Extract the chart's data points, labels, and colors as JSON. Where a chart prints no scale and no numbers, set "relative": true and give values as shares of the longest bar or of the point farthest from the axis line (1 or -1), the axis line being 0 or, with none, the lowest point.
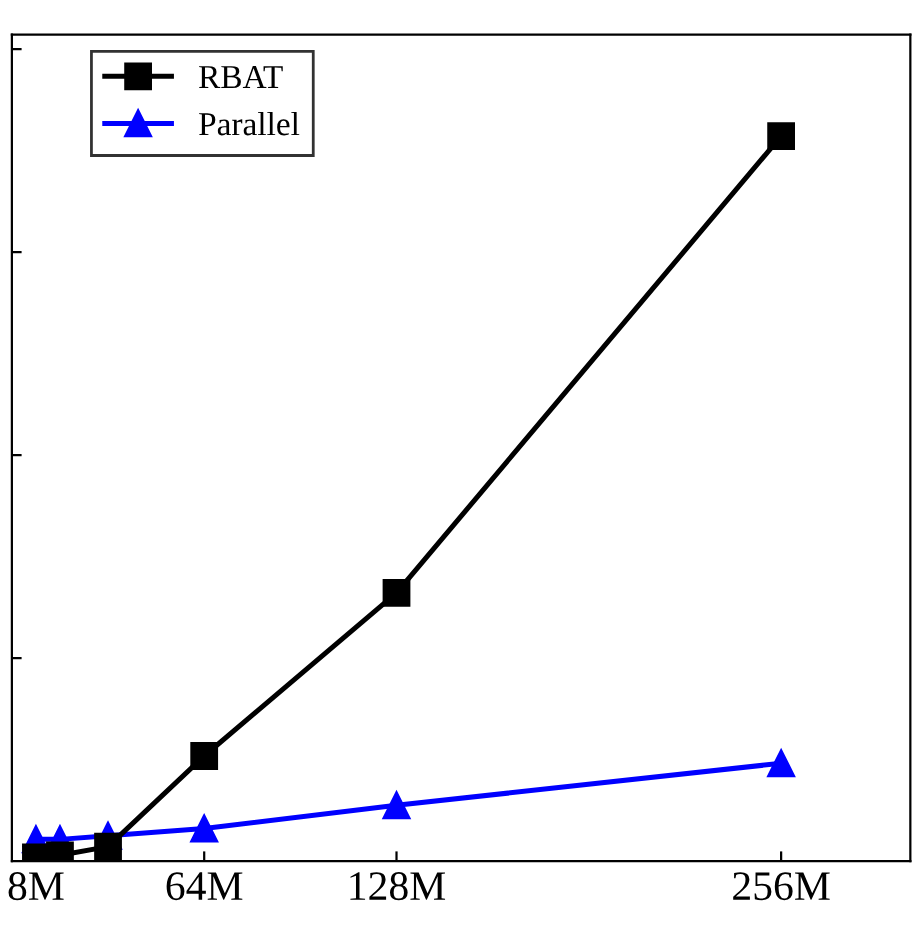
{
  "chart_data": {
    "type": "line",
    "relative": true,
    "x": [
      8,
      16,
      32,
      64,
      128,
      256
    ],
    "xlim": [
      0,
      299
    ],
    "xticks": [
      {
        "value": 8,
        "label": "8M"
      },
      {
        "value": 64,
        "label": "64M"
      },
      {
        "value": 128,
        "label": "128M"
      },
      {
        "value": 256,
        "label": "256M"
      }
    ],
    "tick_labels": "x",
    "legend": "top left",
    "grid": false,
    "line_style": "solid",
    "series": [
      {
        "name": "RBAT",
        "color": "#000000",
        "marker": "square",
        "values": [
          0.005,
          0.008,
          0.02,
          0.145,
          0.37,
          1
        ]
      },
      {
        "name": "Parallel",
        "color": "#0000ff",
        "marker": "triangle",
        "values": [
          0.03,
          0.03,
          0.035,
          0.045,
          0.077,
          0.135
        ]
      }
    ]
  }
}
